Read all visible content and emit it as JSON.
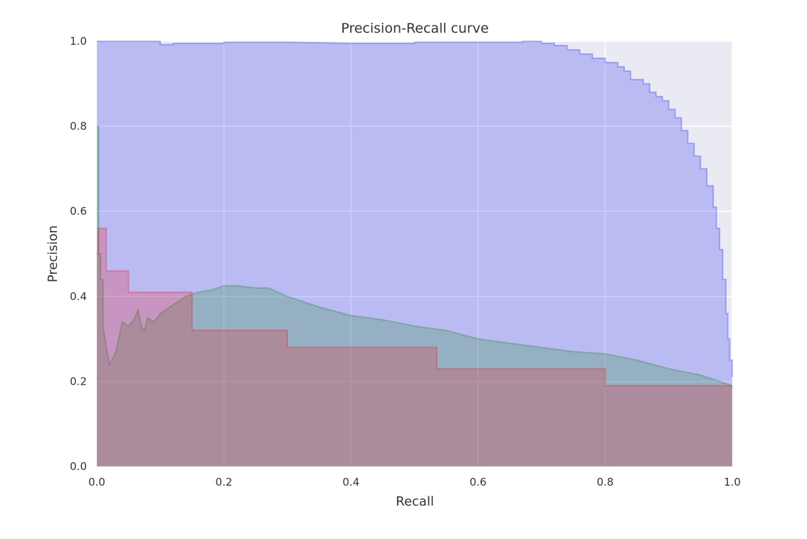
{
  "chart_data": {
    "type": "area",
    "title": "Precision-Recall curve",
    "xlabel": "Recall",
    "ylabel": "Precision",
    "xlim": [
      0.0,
      1.0
    ],
    "ylim": [
      0.0,
      1.0
    ],
    "x_ticks": [
      0.0,
      0.2,
      0.4,
      0.6,
      0.8,
      1.0
    ],
    "y_ticks": [
      0.0,
      0.2,
      0.4,
      0.6,
      0.8,
      1.0
    ],
    "x_tick_labels": [
      "0.0",
      "0.2",
      "0.4",
      "0.6",
      "0.8",
      "1.0"
    ],
    "y_tick_labels": [
      "0.0",
      "0.2",
      "0.4",
      "0.6",
      "0.8",
      "1.0"
    ],
    "grid": true,
    "legend": "none",
    "background": "#eaeaf2",
    "series": [
      {
        "color": "#0000ff",
        "step": true,
        "points": [
          [
            0.0,
            1.0
          ],
          [
            0.1,
            1.0
          ],
          [
            0.1,
            0.992
          ],
          [
            0.12,
            0.992
          ],
          [
            0.12,
            0.995
          ],
          [
            0.2,
            0.995
          ],
          [
            0.2,
            0.998
          ],
          [
            0.3,
            0.998
          ],
          [
            0.4,
            0.995
          ],
          [
            0.5,
            0.995
          ],
          [
            0.5,
            0.998
          ],
          [
            0.6,
            0.998
          ],
          [
            0.67,
            0.998
          ],
          [
            0.67,
            1.0
          ],
          [
            0.7,
            1.0
          ],
          [
            0.7,
            0.995
          ],
          [
            0.72,
            0.995
          ],
          [
            0.72,
            0.99
          ],
          [
            0.74,
            0.99
          ],
          [
            0.74,
            0.98
          ],
          [
            0.76,
            0.98
          ],
          [
            0.76,
            0.97
          ],
          [
            0.78,
            0.97
          ],
          [
            0.78,
            0.96
          ],
          [
            0.8,
            0.96
          ],
          [
            0.8,
            0.95
          ],
          [
            0.82,
            0.95
          ],
          [
            0.82,
            0.94
          ],
          [
            0.83,
            0.94
          ],
          [
            0.83,
            0.93
          ],
          [
            0.84,
            0.93
          ],
          [
            0.84,
            0.91
          ],
          [
            0.86,
            0.91
          ],
          [
            0.86,
            0.9
          ],
          [
            0.87,
            0.9
          ],
          [
            0.87,
            0.88
          ],
          [
            0.88,
            0.88
          ],
          [
            0.88,
            0.87
          ],
          [
            0.89,
            0.87
          ],
          [
            0.89,
            0.86
          ],
          [
            0.9,
            0.86
          ],
          [
            0.9,
            0.84
          ],
          [
            0.91,
            0.84
          ],
          [
            0.91,
            0.82
          ],
          [
            0.92,
            0.82
          ],
          [
            0.92,
            0.79
          ],
          [
            0.93,
            0.79
          ],
          [
            0.93,
            0.76
          ],
          [
            0.94,
            0.76
          ],
          [
            0.94,
            0.73
          ],
          [
            0.95,
            0.73
          ],
          [
            0.95,
            0.7
          ],
          [
            0.96,
            0.7
          ],
          [
            0.96,
            0.66
          ],
          [
            0.97,
            0.66
          ],
          [
            0.97,
            0.61
          ],
          [
            0.975,
            0.61
          ],
          [
            0.975,
            0.56
          ],
          [
            0.98,
            0.56
          ],
          [
            0.98,
            0.51
          ],
          [
            0.985,
            0.51
          ],
          [
            0.985,
            0.44
          ],
          [
            0.99,
            0.44
          ],
          [
            0.99,
            0.36
          ],
          [
            0.993,
            0.36
          ],
          [
            0.993,
            0.3
          ],
          [
            0.996,
            0.3
          ],
          [
            0.996,
            0.25
          ],
          [
            1.0,
            0.25
          ],
          [
            1.0,
            0.21
          ]
        ]
      },
      {
        "color": "#008000",
        "step": true,
        "points": [
          [
            0.0,
            0.8
          ],
          [
            0.003,
            0.8
          ],
          [
            0.003,
            0.5
          ],
          [
            0.006,
            0.5
          ],
          [
            0.006,
            0.44
          ],
          [
            0.01,
            0.44
          ],
          [
            0.01,
            0.33
          ],
          [
            0.015,
            0.28
          ],
          [
            0.02,
            0.24
          ],
          [
            0.03,
            0.27
          ],
          [
            0.04,
            0.34
          ],
          [
            0.05,
            0.33
          ],
          [
            0.06,
            0.35
          ],
          [
            0.065,
            0.37
          ],
          [
            0.07,
            0.33
          ],
          [
            0.075,
            0.32
          ],
          [
            0.08,
            0.35
          ],
          [
            0.09,
            0.34
          ],
          [
            0.1,
            0.36
          ],
          [
            0.11,
            0.37
          ],
          [
            0.12,
            0.38
          ],
          [
            0.13,
            0.39
          ],
          [
            0.14,
            0.4
          ],
          [
            0.15,
            0.405
          ],
          [
            0.16,
            0.41
          ],
          [
            0.18,
            0.415
          ],
          [
            0.2,
            0.425
          ],
          [
            0.22,
            0.425
          ],
          [
            0.25,
            0.42
          ],
          [
            0.27,
            0.42
          ],
          [
            0.3,
            0.4
          ],
          [
            0.35,
            0.375
          ],
          [
            0.4,
            0.355
          ],
          [
            0.45,
            0.345
          ],
          [
            0.5,
            0.33
          ],
          [
            0.55,
            0.32
          ],
          [
            0.6,
            0.3
          ],
          [
            0.65,
            0.29
          ],
          [
            0.7,
            0.28
          ],
          [
            0.75,
            0.27
          ],
          [
            0.8,
            0.265
          ],
          [
            0.85,
            0.25
          ],
          [
            0.9,
            0.23
          ],
          [
            0.95,
            0.215
          ],
          [
            1.0,
            0.19
          ]
        ]
      },
      {
        "color": "#ff0000",
        "step": true,
        "points": [
          [
            0.0,
            0.5
          ],
          [
            0.002,
            0.5
          ],
          [
            0.002,
            0.56
          ],
          [
            0.015,
            0.56
          ],
          [
            0.015,
            0.46
          ],
          [
            0.05,
            0.46
          ],
          [
            0.05,
            0.41
          ],
          [
            0.15,
            0.41
          ],
          [
            0.15,
            0.32
          ],
          [
            0.3,
            0.32
          ],
          [
            0.3,
            0.28
          ],
          [
            0.535,
            0.28
          ],
          [
            0.535,
            0.23
          ],
          [
            0.8,
            0.23
          ],
          [
            0.8,
            0.19
          ],
          [
            1.0,
            0.19
          ]
        ]
      }
    ]
  }
}
